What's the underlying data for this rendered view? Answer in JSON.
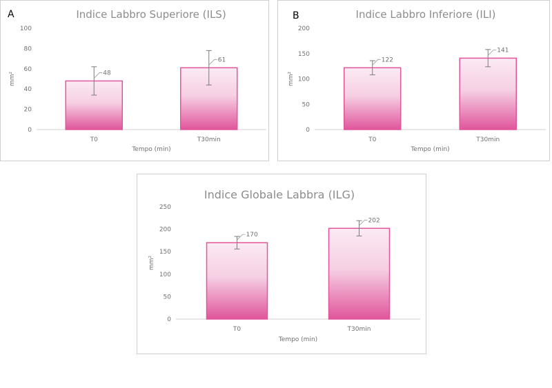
{
  "chart_data": [
    {
      "type": "bar",
      "panel_label": "A",
      "title": "Indice Labbro Superiore (ILS)",
      "xlabel": "Tempo (min)",
      "ylabel": "mm²",
      "categories": [
        "T0",
        "T30min"
      ],
      "values": [
        48,
        61
      ],
      "error": [
        14,
        17
      ],
      "data_labels": [
        "48",
        "61"
      ],
      "ylim": [
        0,
        100
      ],
      "yticks": [
        0,
        20,
        40,
        60,
        80,
        100
      ],
      "grid": false,
      "bar_color": "#e0559b",
      "bar_color_light": "#fbeaf3"
    },
    {
      "type": "bar",
      "panel_label": "B",
      "title": "Indice Labbro Inferiore (ILI)",
      "xlabel": "Tempo (min)",
      "ylabel": "mm²",
      "categories": [
        "T0",
        "T30min"
      ],
      "values": [
        122,
        141
      ],
      "error": [
        14,
        17
      ],
      "data_labels": [
        "122",
        "141"
      ],
      "ylim": [
        0,
        200
      ],
      "yticks": [
        0,
        50,
        100,
        150,
        200
      ],
      "grid": false,
      "bar_color": "#e0559b",
      "bar_color_light": "#fbeaf3"
    },
    {
      "type": "bar",
      "panel_label": "",
      "title": "Indice Globale Labbra (ILG)",
      "xlabel": "Tempo (min)",
      "ylabel": "mm²",
      "categories": [
        "T0",
        "T30min"
      ],
      "values": [
        170,
        202
      ],
      "error": [
        14,
        17
      ],
      "data_labels": [
        "170",
        "202"
      ],
      "ylim": [
        0,
        250
      ],
      "yticks": [
        0,
        50,
        100,
        150,
        200,
        250
      ],
      "grid": false,
      "bar_color": "#e0559b",
      "bar_color_light": "#fbeaf3"
    }
  ]
}
